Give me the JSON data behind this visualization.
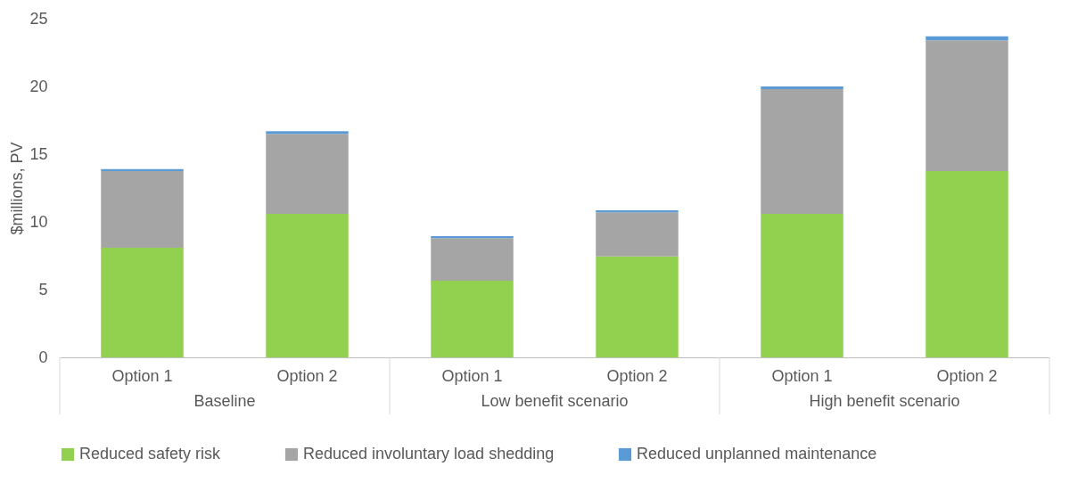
{
  "chart_data": {
    "type": "bar",
    "stacked": true,
    "ylabel": "$millions, PV",
    "categories": [
      "Option 1",
      "Option 2",
      "Option 1",
      "Option 2",
      "Option 1",
      "Option 2"
    ],
    "annotations": [
      "Baseline",
      "Low benefit scenario",
      "High benefit scenario"
    ],
    "series": [
      {
        "name": "Reduced safety risk",
        "color": "#92d050",
        "values": [
          8.1,
          10.6,
          5.65,
          7.45,
          10.6,
          13.75
        ]
      },
      {
        "name": "Reduced involuntary load shedding",
        "color": "#a5a5a5",
        "values": [
          5.65,
          5.9,
          3.15,
          3.25,
          9.2,
          9.65
        ]
      },
      {
        "name": "Reduced unplanned maintenance",
        "color": "#5b9bd5",
        "values": [
          0.15,
          0.2,
          0.15,
          0.15,
          0.2,
          0.3
        ]
      }
    ],
    "ylim": [
      0,
      25
    ],
    "yticks": [
      0,
      5,
      10,
      15,
      20,
      25
    ],
    "grid": false,
    "legend": "bottom"
  }
}
